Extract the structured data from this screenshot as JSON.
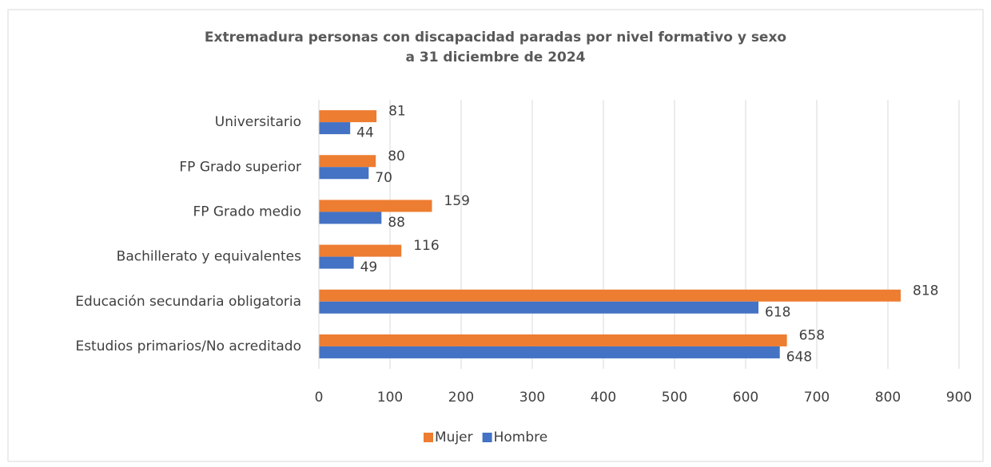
{
  "chart_data": {
    "type": "bar",
    "orientation": "horizontal",
    "title": [
      "Extremadura personas con discapacidad paradas por nivel formativo y sexo",
      "a 31 diciembre de 2024"
    ],
    "categories": [
      "Universitario",
      "FP Grado superior",
      "FP Grado medio",
      "Bachillerato y equivalentes",
      "Educación secundaria obligatoria",
      "Estudios primarios/No acreditado"
    ],
    "series": [
      {
        "name": "Mujer",
        "color": "#ed7d31",
        "values": [
          81,
          80,
          159,
          116,
          818,
          658
        ]
      },
      {
        "name": "Hombre",
        "color": "#4472c4",
        "values": [
          44,
          70,
          88,
          49,
          618,
          648
        ]
      }
    ],
    "xlim": [
      0,
      900
    ],
    "xticks": [
      0,
      100,
      200,
      300,
      400,
      500,
      600,
      700,
      800,
      900
    ],
    "grid": true,
    "legend": "bottom"
  }
}
